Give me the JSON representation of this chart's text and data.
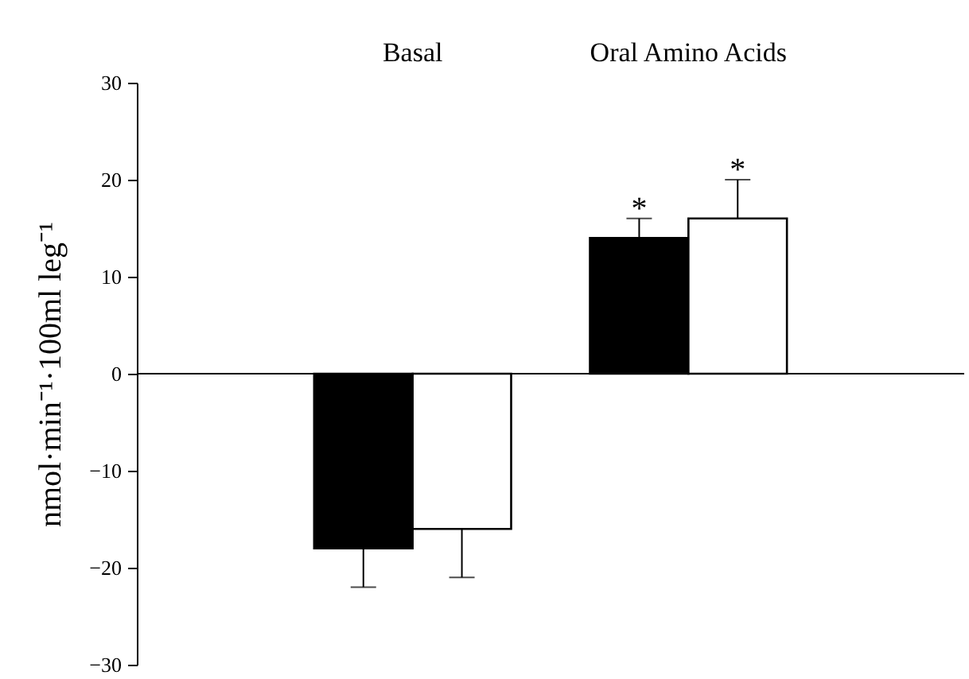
{
  "chart_data": {
    "type": "bar",
    "categories": [
      "Basal",
      "Oral Amino Acids"
    ],
    "ylabel": "nmol·min⁻¹·100ml leg⁻¹",
    "series": [
      {
        "color": "#000000",
        "values": [
          -18,
          14
        ],
        "errors": [
          [
            -22,
            -18
          ],
          [
            14,
            16
          ]
        ]
      },
      {
        "color": "#ffffff",
        "values": [
          -16,
          16
        ],
        "errors": [
          [
            -21,
            -16
          ],
          [
            16,
            20
          ]
        ]
      }
    ],
    "ylim": [
      -30,
      30
    ],
    "yticks": [
      -30,
      -20,
      -10,
      0,
      10,
      20,
      30
    ],
    "annotations": [
      "*",
      "*"
    ]
  }
}
